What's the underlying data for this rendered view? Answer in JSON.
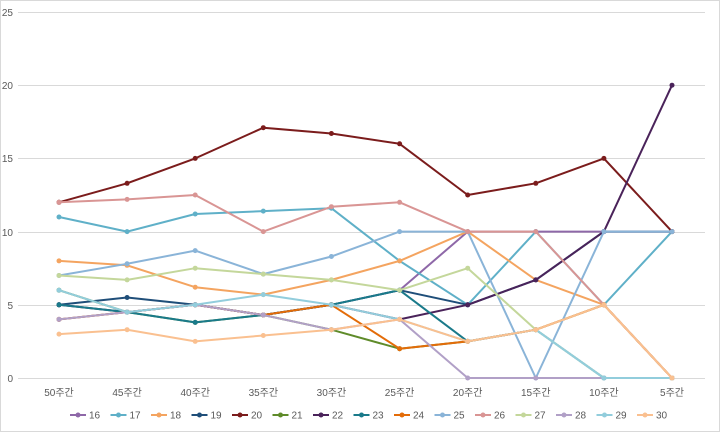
{
  "chart_data": {
    "type": "line",
    "title": "",
    "xlabel": "",
    "ylabel": "",
    "categories": [
      "50주간",
      "45주간",
      "40주간",
      "35주간",
      "30주간",
      "25주간",
      "20주간",
      "15주간",
      "10주간",
      "5주간"
    ],
    "ylim": [
      0,
      25
    ],
    "yticks": [
      0,
      5,
      10,
      15,
      20,
      25
    ],
    "grid": true,
    "legend_position": "bottom",
    "series": [
      {
        "name": "16",
        "color": "#8e68a8",
        "values": [
          4,
          4.5,
          5,
          4.3,
          5,
          6,
          10,
          10,
          10,
          10
        ]
      },
      {
        "name": "17",
        "color": "#5fb0c8",
        "values": [
          11,
          10,
          11.2,
          11.4,
          11.6,
          8,
          5,
          10,
          5,
          10
        ]
      },
      {
        "name": "18",
        "color": "#f4a460",
        "values": [
          8,
          7.7,
          6.2,
          5.7,
          6.7,
          8,
          10,
          6.7,
          5,
          0
        ]
      },
      {
        "name": "19",
        "color": "#1f4e79",
        "values": [
          5,
          5.5,
          5,
          4.3,
          5,
          6,
          5,
          6.7,
          10,
          10
        ]
      },
      {
        "name": "20",
        "color": "#7b1c1c",
        "values": [
          12,
          13.3,
          15,
          17.1,
          16.7,
          16,
          12.5,
          13.3,
          15,
          10
        ]
      },
      {
        "name": "21",
        "color": "#5f8b2a",
        "values": [
          6,
          4.5,
          3.8,
          4.3,
          3.3,
          2,
          2.5,
          3.3,
          5,
          0
        ]
      },
      {
        "name": "22",
        "color": "#4a235a",
        "values": [
          5,
          4.5,
          5,
          4.3,
          5,
          4,
          5,
          6.7,
          10,
          20
        ]
      },
      {
        "name": "23",
        "color": "#1a7a8a",
        "values": [
          5,
          4.5,
          3.8,
          4.3,
          5,
          6,
          2.5,
          3.3,
          0,
          0
        ]
      },
      {
        "name": "24",
        "color": "#e36c09",
        "values": [
          4,
          4.5,
          5,
          4.3,
          5,
          2,
          2.5,
          3.3,
          5,
          0
        ]
      },
      {
        "name": "25",
        "color": "#8ab4d8",
        "values": [
          7,
          7.8,
          8.7,
          7.1,
          8.3,
          10,
          10,
          0,
          10,
          10
        ]
      },
      {
        "name": "26",
        "color": "#d99594",
        "values": [
          12,
          12.2,
          12.5,
          10,
          11.7,
          12,
          10,
          10,
          5,
          0
        ]
      },
      {
        "name": "27",
        "color": "#c4d79b",
        "values": [
          7,
          6.7,
          7.5,
          7.1,
          6.7,
          6,
          7.5,
          3.3,
          0,
          0
        ]
      },
      {
        "name": "28",
        "color": "#b1a0c7",
        "values": [
          4,
          4.5,
          5,
          4.3,
          3.3,
          4,
          0,
          0,
          0,
          0
        ]
      },
      {
        "name": "29",
        "color": "#92cddc",
        "values": [
          6,
          4.5,
          5,
          5.7,
          5,
          4,
          2.5,
          3.3,
          0,
          0
        ]
      },
      {
        "name": "30",
        "color": "#fac090",
        "values": [
          3,
          3.3,
          2.5,
          2.9,
          3.3,
          4,
          2.5,
          3.3,
          5,
          0
        ]
      }
    ]
  }
}
